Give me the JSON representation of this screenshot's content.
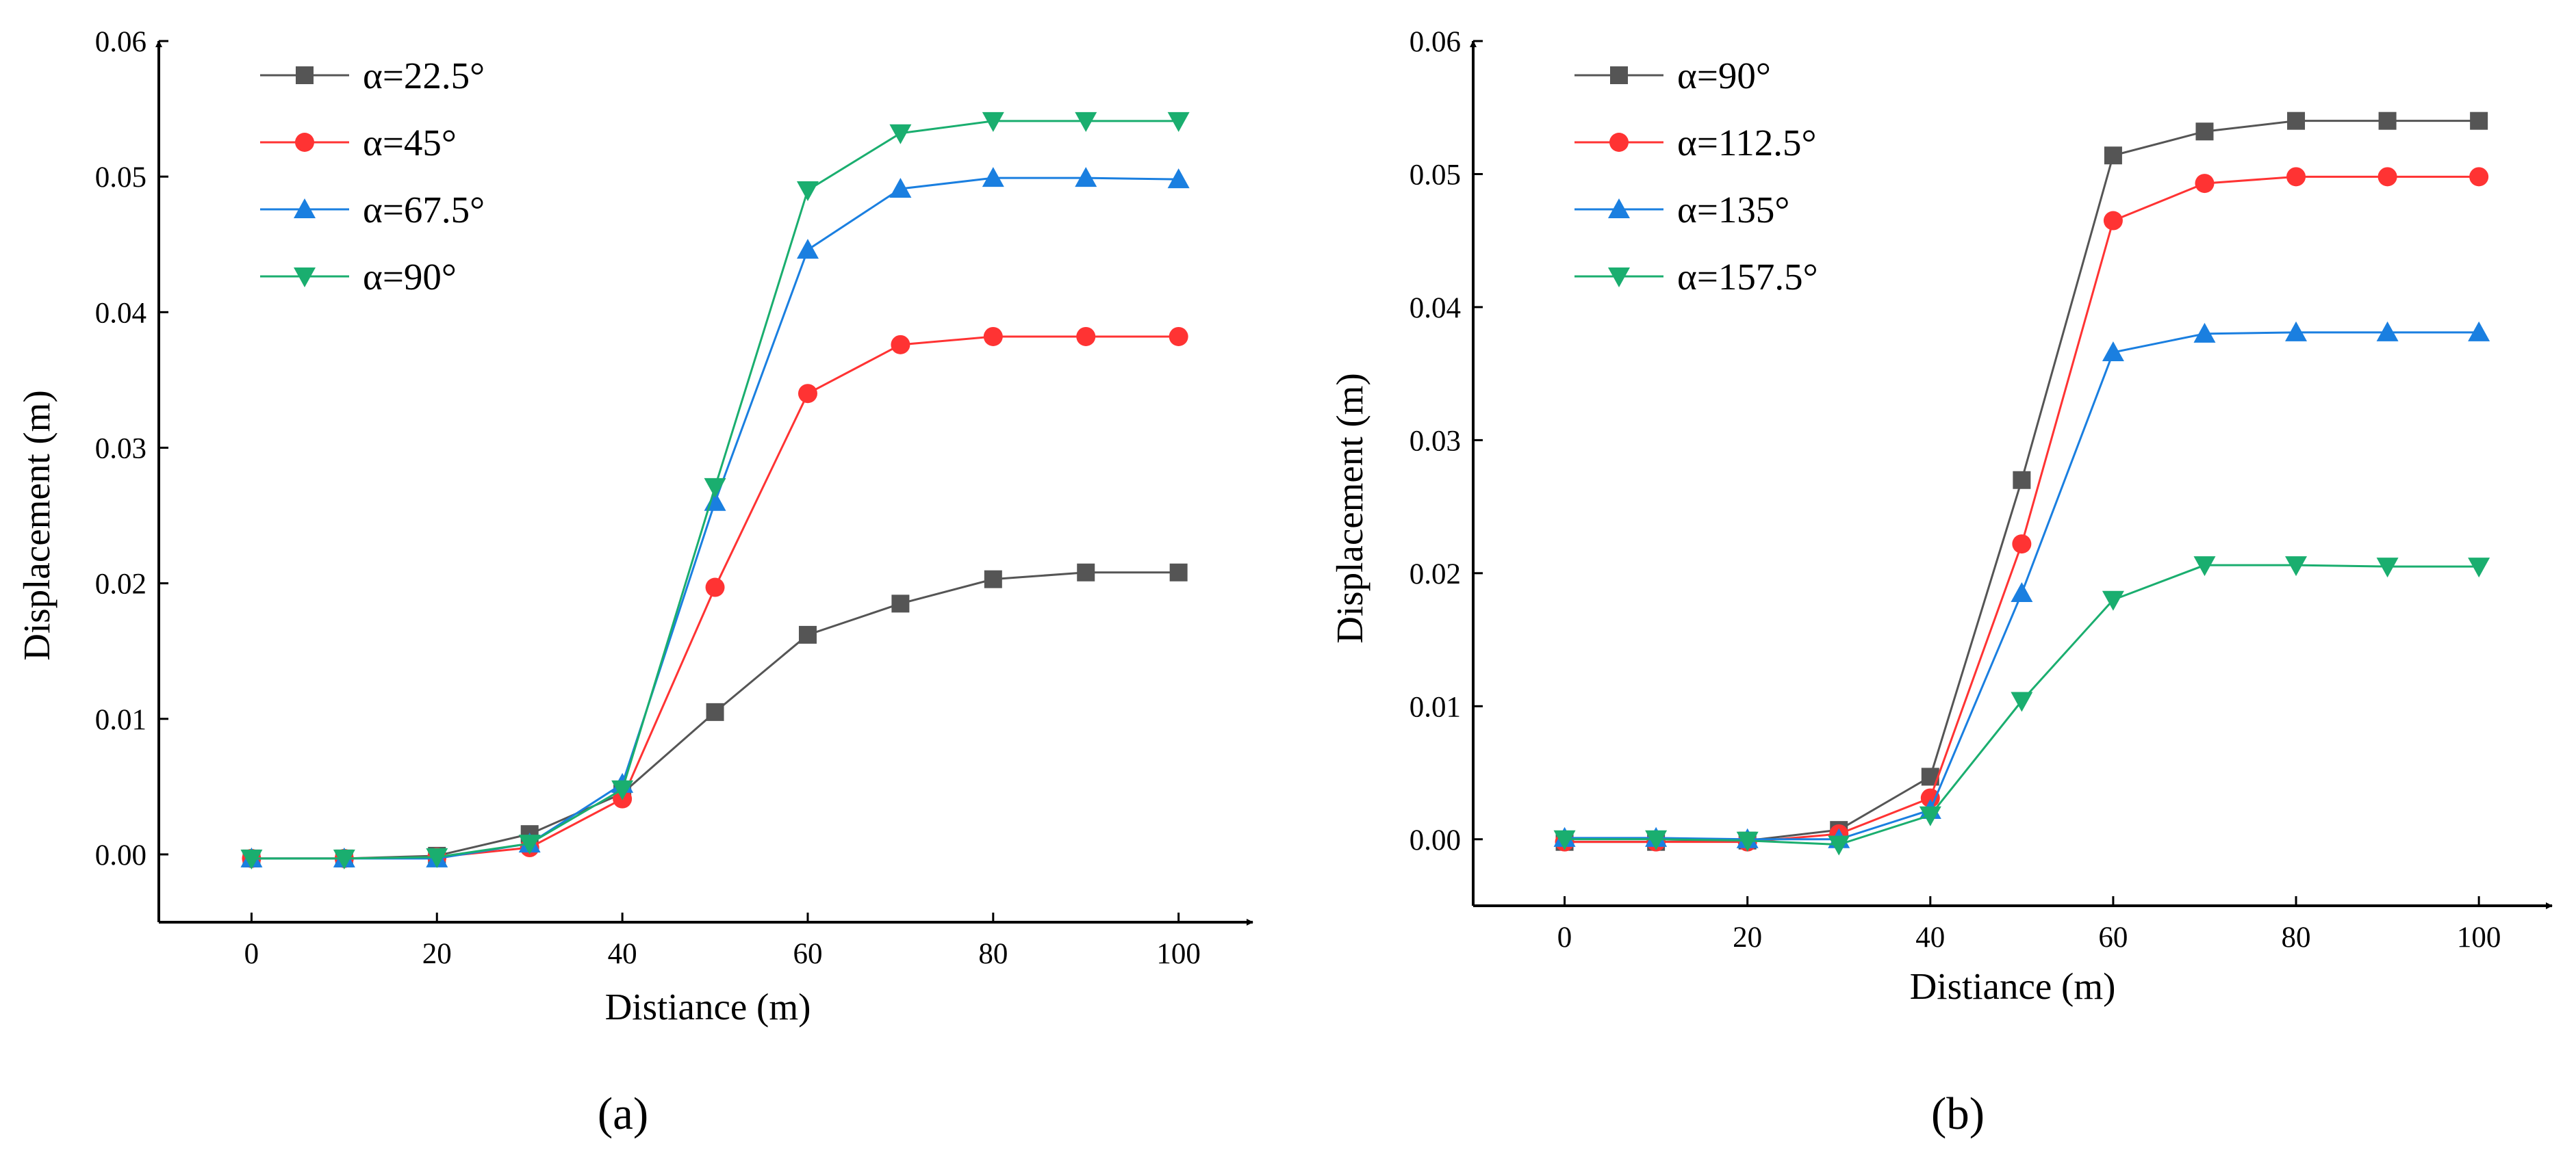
{
  "chart_data": [
    {
      "type": "line",
      "panel_label": "(a)",
      "xlabel": "Distiance (m)",
      "ylabel": "Displacement (m)",
      "xlim": [
        -10,
        108
      ],
      "ylim": [
        -0.005,
        0.06
      ],
      "x_ticks": [
        0,
        20,
        40,
        60,
        80,
        100
      ],
      "x_tick_labels": [
        "0",
        "20",
        "40",
        "60",
        "80",
        "100"
      ],
      "y_ticks": [
        0,
        0.01,
        0.02,
        0.03,
        0.04,
        0.05,
        0.06
      ],
      "y_tick_labels": [
        "0.00",
        "0.01",
        "0.02",
        "0.03",
        "0.04",
        "0.05",
        "0.06"
      ],
      "grid": false,
      "legend_position": "top-left",
      "x": [
        0,
        10,
        20,
        30,
        40,
        50,
        60,
        70,
        80,
        90,
        100
      ],
      "series": [
        {
          "name": "α=22.5°",
          "marker": "square",
          "color": "#555555",
          "values": [
            -0.0003,
            -0.0003,
            -0.0001,
            0.0015,
            0.0045,
            0.0105,
            0.0162,
            0.0185,
            0.0203,
            0.0208,
            0.0208
          ]
        },
        {
          "name": "α=45°",
          "marker": "circle",
          "color": "#ff3333",
          "values": [
            -0.0003,
            -0.0003,
            -0.0002,
            0.0005,
            0.0041,
            0.0197,
            0.034,
            0.0376,
            0.0382,
            0.0382,
            0.0382
          ]
        },
        {
          "name": "α=67.5°",
          "marker": "triangle-up",
          "color": "#1a7fe0",
          "values": [
            -0.0003,
            -0.0003,
            -0.0003,
            0.0008,
            0.0052,
            0.026,
            0.0446,
            0.0491,
            0.0499,
            0.0499,
            0.0498
          ]
        },
        {
          "name": "α=90°",
          "marker": "triangle-down",
          "color": "#1aae6f",
          "values": [
            -0.0003,
            -0.0003,
            -0.0002,
            0.0008,
            0.0048,
            0.0271,
            0.049,
            0.0532,
            0.0541,
            0.0541,
            0.0541
          ]
        }
      ]
    },
    {
      "type": "line",
      "panel_label": "(b)",
      "xlabel": "Distiance (m)",
      "ylabel": "Displacement (m)",
      "xlim": [
        -10,
        108
      ],
      "ylim": [
        -0.005,
        0.06
      ],
      "x_ticks": [
        0,
        20,
        40,
        60,
        80,
        100
      ],
      "x_tick_labels": [
        "0",
        "20",
        "40",
        "60",
        "80",
        "100"
      ],
      "y_ticks": [
        0,
        0.01,
        0.02,
        0.03,
        0.04,
        0.05,
        0.06
      ],
      "y_tick_labels": [
        "0.00",
        "0.01",
        "0.02",
        "0.03",
        "0.04",
        "0.05",
        "0.06"
      ],
      "grid": false,
      "legend_position": "top-left",
      "x": [
        0,
        10,
        20,
        30,
        40,
        50,
        60,
        70,
        80,
        90,
        100
      ],
      "series": [
        {
          "name": "α=90°",
          "marker": "square",
          "color": "#555555",
          "values": [
            -0.0002,
            -0.0002,
            -0.0001,
            0.0007,
            0.0047,
            0.027,
            0.0514,
            0.0532,
            0.054,
            0.054,
            0.054
          ]
        },
        {
          "name": "α=112.5°",
          "marker": "circle",
          "color": "#ff3333",
          "values": [
            -0.0002,
            -0.0002,
            -0.0002,
            0.0004,
            0.0031,
            0.0222,
            0.0465,
            0.0493,
            0.0498,
            0.0498,
            0.0498
          ]
        },
        {
          "name": "α=135°",
          "marker": "triangle-up",
          "color": "#1a7fe0",
          "values": [
            0.0001,
            0.0001,
            0.0,
            0.0,
            0.0022,
            0.0185,
            0.0366,
            0.038,
            0.0381,
            0.0381,
            0.0381
          ]
        },
        {
          "name": "α=157.5°",
          "marker": "triangle-down",
          "color": "#1aae6f",
          "values": [
            0.0,
            0.0,
            -0.0001,
            -0.0004,
            0.0018,
            0.0104,
            0.018,
            0.0206,
            0.0206,
            0.0205,
            0.0205
          ]
        }
      ]
    }
  ]
}
